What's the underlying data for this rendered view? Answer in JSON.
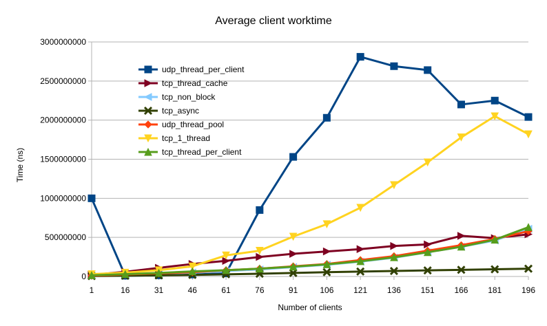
{
  "chart_data": {
    "type": "line",
    "title": "Average client worktime",
    "xlabel": "Number of clients",
    "ylabel": "Time (ns)",
    "categories": [
      "1",
      "16",
      "31",
      "46",
      "61",
      "76",
      "91",
      "106",
      "121",
      "136",
      "151",
      "166",
      "181",
      "196"
    ],
    "ylim": [
      0,
      3000000000
    ],
    "yticks": [
      "0",
      "500000000",
      "1000000000",
      "1500000000",
      "2000000000",
      "2500000000",
      "3000000000"
    ],
    "grid": "horizontal",
    "legend_position": "top-left inside plot",
    "series": [
      {
        "name": "udp_thread_per_client",
        "color": "#004586",
        "marker": "square",
        "values": [
          1000000000,
          10000000,
          15000000,
          25000000,
          40000000,
          850000000,
          1530000000,
          2030000000,
          2810000000,
          2690000000,
          2640000000,
          2200000000,
          2250000000,
          2040000000
        ]
      },
      {
        "name": "tcp_thread_cache",
        "color": "#7e0021",
        "marker": "triangle-right",
        "values": [
          20000000,
          60000000,
          110000000,
          160000000,
          200000000,
          250000000,
          290000000,
          320000000,
          350000000,
          390000000,
          410000000,
          520000000,
          490000000,
          540000000
        ]
      },
      {
        "name": "tcp_non_block",
        "color": "#83caff",
        "marker": "triangle-left",
        "values": [
          10000000,
          20000000,
          30000000,
          50000000,
          70000000,
          90000000,
          120000000,
          150000000,
          190000000,
          240000000,
          310000000,
          380000000,
          460000000,
          610000000
        ]
      },
      {
        "name": "tcp_async",
        "color": "#314004",
        "marker": "x",
        "values": [
          5000000,
          10000000,
          15000000,
          20000000,
          28000000,
          35000000,
          45000000,
          55000000,
          63000000,
          70000000,
          78000000,
          85000000,
          92000000,
          100000000
        ]
      },
      {
        "name": "udp_thread_pool",
        "color": "#ff420e",
        "marker": "diamond",
        "values": [
          10000000,
          25000000,
          40000000,
          55000000,
          80000000,
          100000000,
          130000000,
          160000000,
          210000000,
          260000000,
          330000000,
          400000000,
          480000000,
          580000000
        ]
      },
      {
        "name": "tcp_1_thread",
        "color": "#ffd320",
        "marker": "triangle-down",
        "values": [
          30000000,
          50000000,
          80000000,
          130000000,
          270000000,
          330000000,
          510000000,
          670000000,
          880000000,
          1170000000,
          1460000000,
          1780000000,
          2050000000,
          1820000000
        ]
      },
      {
        "name": "tcp_thread_per_client",
        "color": "#579d1c",
        "marker": "triangle-up",
        "values": [
          15000000,
          30000000,
          45000000,
          65000000,
          80000000,
          100000000,
          125000000,
          155000000,
          195000000,
          245000000,
          310000000,
          380000000,
          470000000,
          630000000
        ]
      }
    ]
  }
}
